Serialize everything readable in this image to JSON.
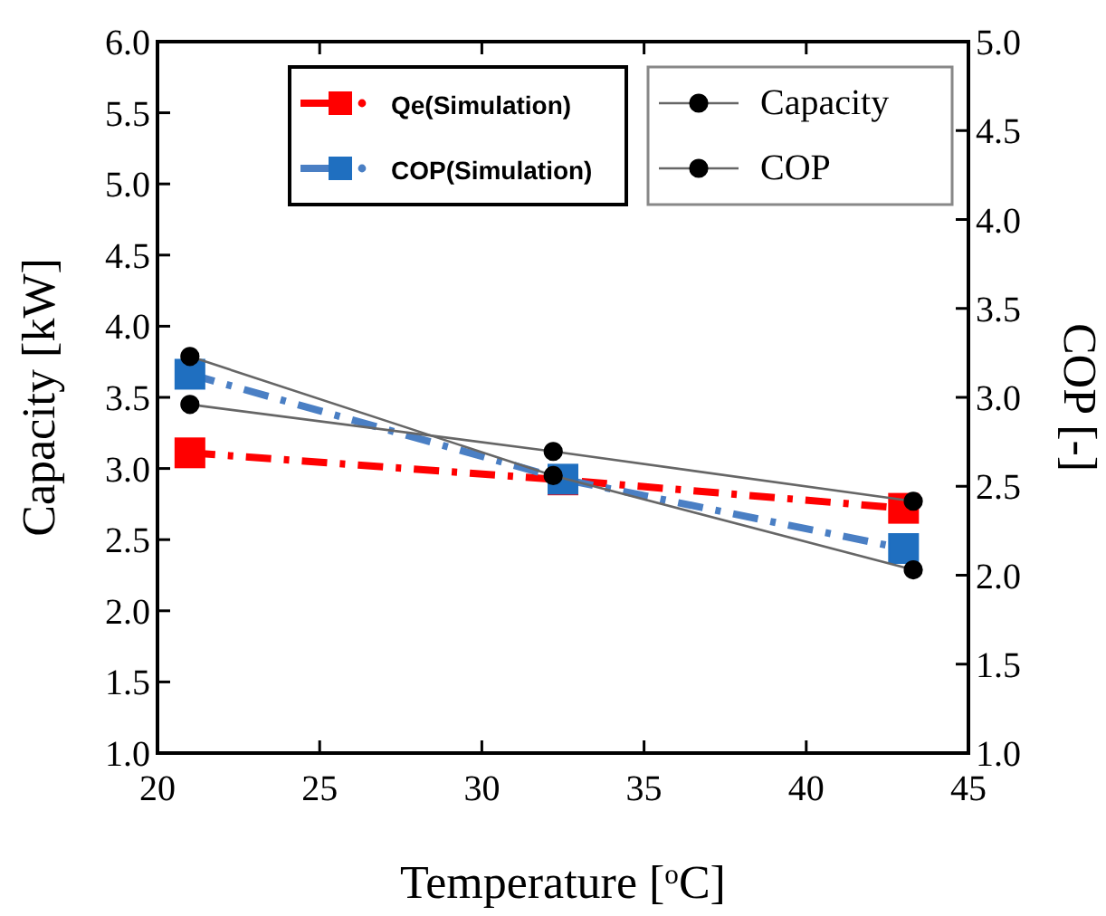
{
  "chart_data": {
    "type": "line",
    "xlabel": "Temperature [$^{o}$C]",
    "ylabel": "Capacity [kW]",
    "y2label": "COP [-]",
    "xlim": [
      20,
      45
    ],
    "xticks": [
      20,
      25,
      30,
      35,
      40,
      45
    ],
    "ylim": [
      1,
      6
    ],
    "yticks": [
      {
        "value": 1,
        "label": "1.0"
      },
      {
        "value": 1.5,
        "label": "1.5"
      },
      {
        "value": 2,
        "label": "2.0"
      },
      {
        "value": 2.5,
        "label": "2.5"
      },
      {
        "value": 3,
        "label": "3.0"
      },
      {
        "value": 3.5,
        "label": "3.5"
      },
      {
        "value": 4,
        "label": "4.0"
      },
      {
        "value": 4.5,
        "label": "4.5"
      },
      {
        "value": 5,
        "label": "5.0"
      },
      {
        "value": 5.5,
        "label": "5.5"
      },
      {
        "value": 6,
        "label": "6.0"
      }
    ],
    "y2lim": [
      1,
      5
    ],
    "y2ticks": [
      {
        "value": 1,
        "label": "1.0"
      },
      {
        "value": 1.5,
        "label": "1.5"
      },
      {
        "value": 2,
        "label": "2.0"
      },
      {
        "value": 2.5,
        "label": "2.5"
      },
      {
        "value": 3,
        "label": "3.0"
      },
      {
        "value": 3.5,
        "label": "3.5"
      },
      {
        "value": 4,
        "label": "4.0"
      },
      {
        "value": 4.5,
        "label": "4.5"
      },
      {
        "value": 5,
        "label": "5.0"
      }
    ],
    "legend": "top right",
    "grid": false,
    "series": [
      {
        "name": "Qe(Simulation)",
        "color": "#ff0000",
        "marker": "square",
        "line_style": "dashed",
        "x": [
          21,
          32.5,
          43
        ],
        "values": [
          3.11,
          2.92,
          2.72
        ]
      },
      {
        "name": "COP(Simulation)",
        "color": "#1f6fc0",
        "marker": "square",
        "line_style": "dashed",
        "axis": "y2",
        "x": [
          21,
          32.5,
          43
        ],
        "values": [
          3.13,
          2.54,
          2.15
        ]
      },
      {
        "name": "Capacity",
        "color": "#000000",
        "marker": "circle",
        "line_style": "solid",
        "x": [
          21,
          32.2,
          43.3
        ],
        "values": [
          3.45,
          3.12,
          2.77
        ]
      },
      {
        "name": "COP",
        "color": "#000000",
        "marker": "circle",
        "line_style": "solid",
        "axis": "y2",
        "x": [
          21,
          32.2,
          43.3
        ],
        "values": [
          3.23,
          2.56,
          2.03
        ]
      }
    ]
  }
}
